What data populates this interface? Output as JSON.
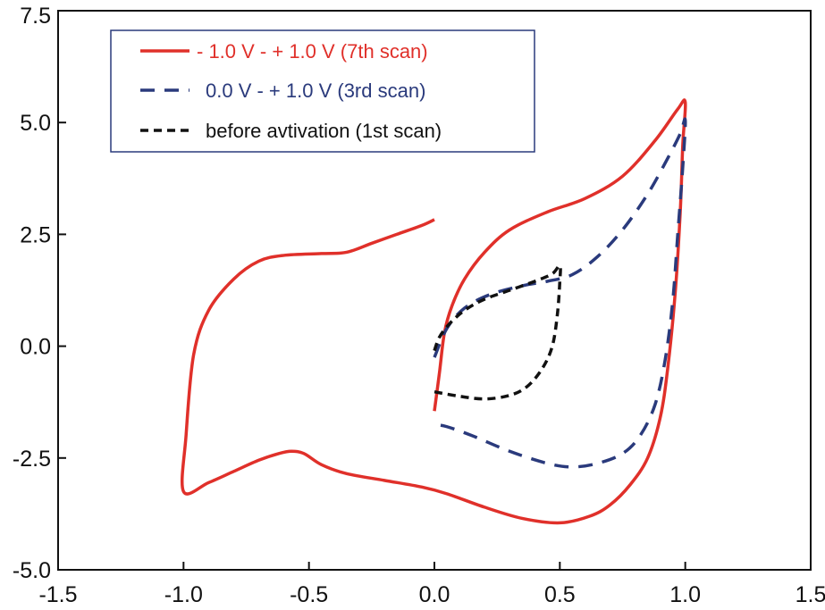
{
  "chart_data": {
    "type": "line",
    "title": "",
    "xlabel": "",
    "ylabel": "",
    "xlim": [
      -1.5,
      1.5
    ],
    "ylim": [
      -5.0,
      7.5
    ],
    "x_ticks": [
      -1.5,
      -1.0,
      -0.5,
      0.0,
      0.5,
      1.0,
      1.5
    ],
    "x_tick_labels": [
      "-1.5",
      "-1.0",
      "-0.5",
      "0.0",
      "0.5",
      "1.0",
      "1.5"
    ],
    "y_ticks": [
      -5.0,
      -2.5,
      0.0,
      2.5,
      5.0,
      7.5
    ],
    "y_tick_labels": [
      "-5.0",
      "-2.5",
      "0.0",
      "2.5",
      "5.0",
      "7.5"
    ],
    "grid": false,
    "legend_position": "top-left",
    "series": [
      {
        "name": "- 1.0 V - + 1.0 V (7th scan)",
        "color": "#e0302a",
        "dash": "solid",
        "points": [
          [
            0.0,
            -1.45
          ],
          [
            0.02,
            -0.6
          ],
          [
            0.04,
            0.3
          ],
          [
            0.07,
            0.9
          ],
          [
            0.12,
            1.5
          ],
          [
            0.2,
            2.1
          ],
          [
            0.3,
            2.6
          ],
          [
            0.45,
            3.0
          ],
          [
            0.6,
            3.3
          ],
          [
            0.75,
            3.8
          ],
          [
            0.88,
            4.6
          ],
          [
            0.97,
            5.3
          ],
          [
            1.0,
            5.45
          ],
          [
            0.99,
            4.5
          ],
          [
            0.98,
            3.0
          ],
          [
            0.96,
            1.2
          ],
          [
            0.93,
            -0.5
          ],
          [
            0.9,
            -1.6
          ],
          [
            0.85,
            -2.5
          ],
          [
            0.78,
            -3.1
          ],
          [
            0.7,
            -3.55
          ],
          [
            0.62,
            -3.8
          ],
          [
            0.5,
            -3.95
          ],
          [
            0.35,
            -3.85
          ],
          [
            0.2,
            -3.6
          ],
          [
            0.05,
            -3.3
          ],
          [
            -0.05,
            -3.15
          ],
          [
            -0.2,
            -3.0
          ],
          [
            -0.35,
            -2.85
          ],
          [
            -0.45,
            -2.65
          ],
          [
            -0.52,
            -2.4
          ],
          [
            -0.57,
            -2.35
          ],
          [
            -0.62,
            -2.4
          ],
          [
            -0.7,
            -2.55
          ],
          [
            -0.8,
            -2.8
          ],
          [
            -0.9,
            -3.05
          ],
          [
            -1.0,
            -3.25
          ],
          [
            -0.99,
            -2.0
          ],
          [
            -0.96,
            -0.2
          ],
          [
            -0.9,
            0.8
          ],
          [
            -0.8,
            1.5
          ],
          [
            -0.7,
            1.9
          ],
          [
            -0.6,
            2.03
          ],
          [
            -0.45,
            2.07
          ],
          [
            -0.35,
            2.1
          ],
          [
            -0.25,
            2.3
          ],
          [
            -0.15,
            2.5
          ],
          [
            -0.05,
            2.7
          ],
          [
            0.0,
            2.83
          ]
        ]
      },
      {
        "name": "0.0 V - + 1.0 V (3rd scan)",
        "color": "#2a3a7c",
        "dash": "long-dash",
        "points": [
          [
            0.0,
            -0.25
          ],
          [
            0.05,
            0.4
          ],
          [
            0.12,
            0.85
          ],
          [
            0.22,
            1.15
          ],
          [
            0.35,
            1.35
          ],
          [
            0.45,
            1.45
          ],
          [
            0.55,
            1.6
          ],
          [
            0.65,
            2.0
          ],
          [
            0.75,
            2.6
          ],
          [
            0.85,
            3.4
          ],
          [
            0.93,
            4.2
          ],
          [
            0.98,
            4.75
          ],
          [
            1.0,
            5.05
          ],
          [
            0.99,
            4.0
          ],
          [
            0.97,
            2.5
          ],
          [
            0.95,
            1.0
          ],
          [
            0.92,
            -0.3
          ],
          [
            0.88,
            -1.3
          ],
          [
            0.82,
            -2.0
          ],
          [
            0.75,
            -2.4
          ],
          [
            0.65,
            -2.62
          ],
          [
            0.55,
            -2.7
          ],
          [
            0.45,
            -2.62
          ],
          [
            0.3,
            -2.35
          ],
          [
            0.15,
            -2.0
          ],
          [
            0.05,
            -1.8
          ],
          [
            0.0,
            -1.75
          ]
        ]
      },
      {
        "name": "before avtivation (1st scan)",
        "color": "#111111",
        "dash": "short-dash",
        "points": [
          [
            0.0,
            -0.1
          ],
          [
            0.02,
            0.2
          ],
          [
            0.06,
            0.5
          ],
          [
            0.12,
            0.8
          ],
          [
            0.2,
            1.05
          ],
          [
            0.3,
            1.25
          ],
          [
            0.4,
            1.45
          ],
          [
            0.47,
            1.62
          ],
          [
            0.5,
            1.8
          ],
          [
            0.5,
            1.45
          ],
          [
            0.49,
            0.7
          ],
          [
            0.47,
            0.0
          ],
          [
            0.43,
            -0.5
          ],
          [
            0.37,
            -0.9
          ],
          [
            0.3,
            -1.1
          ],
          [
            0.2,
            -1.18
          ],
          [
            0.1,
            -1.12
          ],
          [
            0.0,
            -1.02
          ]
        ]
      }
    ]
  }
}
